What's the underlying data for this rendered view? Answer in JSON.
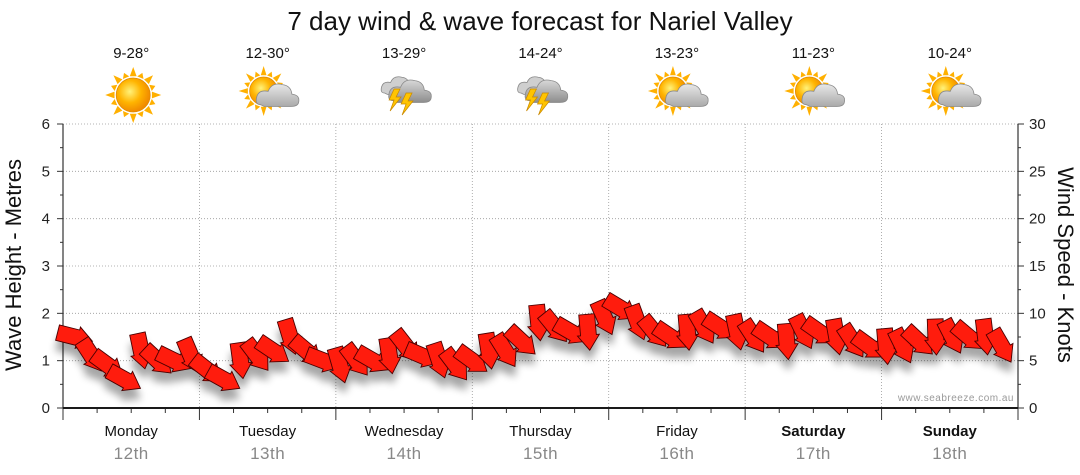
{
  "chart_data": {
    "type": "line",
    "title": "7 day wind & wave forecast for Nariel Valley",
    "ylabel": "Wave Height - Metres",
    "y2label": "Wind Speed - Knots",
    "ylim": [
      0,
      6
    ],
    "y2lim": [
      0,
      30
    ],
    "yticks": [
      "0",
      "1",
      "2",
      "3",
      "4",
      "5",
      "6"
    ],
    "y2ticks": [
      "0",
      "5",
      "10",
      "15",
      "20",
      "25",
      "30"
    ],
    "grid": true,
    "days": [
      {
        "day": "Monday",
        "date": "12th",
        "temp": "9-28°",
        "icon": "sunny-icon",
        "bold": false
      },
      {
        "day": "Tuesday",
        "date": "13th",
        "temp": "12-30°",
        "icon": "partly-cloudy-icon",
        "bold": false
      },
      {
        "day": "Wednesday",
        "date": "14th",
        "temp": "13-29°",
        "icon": "thunderstorm-icon",
        "bold": false
      },
      {
        "day": "Thursday",
        "date": "15th",
        "temp": "14-24°",
        "icon": "thunderstorm-icon",
        "bold": false
      },
      {
        "day": "Friday",
        "date": "16th",
        "temp": "13-23°",
        "icon": "partly-cloudy-icon",
        "bold": false
      },
      {
        "day": "Saturday",
        "date": "17th",
        "temp": "11-23°",
        "icon": "partly-cloudy-icon",
        "bold": true
      },
      {
        "day": "Sunday",
        "date": "18th",
        "temp": "10-24°",
        "icon": "partly-cloudy-icon",
        "bold": true
      }
    ],
    "series": [
      {
        "unit": "knots",
        "values": [
          7.5,
          5.5,
          4.5,
          3,
          6,
          5,
          5,
          5.5,
          4,
          3,
          5,
          5.5,
          6,
          7.5,
          6,
          5,
          4.5,
          5,
          5,
          5.5,
          6.5,
          5.5,
          5,
          4.5,
          5,
          6,
          6,
          7,
          9,
          8.5,
          8,
          8,
          9.5,
          10.5,
          9,
          8,
          7.5,
          8,
          8.5,
          8.5,
          8,
          7.5,
          7.5,
          7,
          8,
          8,
          7.5,
          7,
          6.5,
          6.5,
          6.5,
          7,
          7.5,
          7.5,
          7.5,
          7.5,
          6.5
        ]
      }
    ]
  },
  "watermark": "www.seabreeze.com.au",
  "colors": {
    "arrow": "#ff1a0d",
    "grid": "#9a9a9a",
    "axis": "#333333"
  }
}
